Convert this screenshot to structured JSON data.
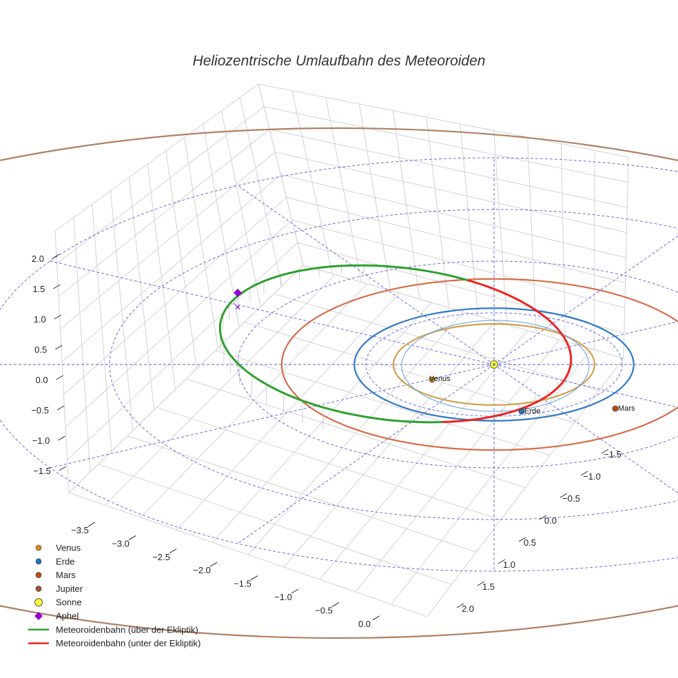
{
  "chart_data": {
    "type": "line",
    "title": "Heliozentrische Umlaufbahn des Meteoroiden",
    "projection": "3d",
    "axes": {
      "x": {
        "ticks": [
          "−3.5",
          "−3.0",
          "−2.5",
          "−2.0",
          "−1.5",
          "−1.0",
          "−0.5",
          "0.0"
        ]
      },
      "y": {
        "ticks": [
          "−1.5",
          "−1.0",
          "−0.5",
          "0.0",
          "0.5",
          "1.0",
          "1.5",
          "2.0"
        ]
      },
      "z": {
        "ticks": [
          "2.0",
          "1.5",
          "1.0",
          "0.5",
          "0.0",
          "−0.5",
          "−1.0",
          "−1.5"
        ]
      }
    },
    "grid": true,
    "ecliptic_reference_rings_au": [
      1,
      2,
      3,
      4
    ],
    "planet_orbits": [
      {
        "name": "Venus",
        "radius_au": 0.72,
        "color": "#d4a04c"
      },
      {
        "name": "Erde",
        "radius_au": 1.0,
        "color": "#2f78c8"
      },
      {
        "name": "Mars",
        "radius_au": 1.52,
        "color": "#d96a45"
      },
      {
        "name": "Jupiter",
        "radius_au": 5.2,
        "color": "#b08060"
      }
    ],
    "planets": [
      {
        "name": "Venus",
        "label": "Venus",
        "color": "#d98a1f"
      },
      {
        "name": "Erde",
        "label": "Erde",
        "color": "#1f77b4"
      },
      {
        "name": "Mars",
        "label": "Mars",
        "color": "#c24a18"
      },
      {
        "name": "Jupiter",
        "label": "",
        "color": "#a0522d"
      }
    ],
    "sun": {
      "name": "Sonne",
      "color": "#ffff33"
    },
    "aphel": {
      "name": "Aphel",
      "color": "#9400d3",
      "projection_marker": "×"
    },
    "series": [
      {
        "name": "Meteoroidenbahn (über der Ekliptik)",
        "color": "#2ca02c"
      },
      {
        "name": "Meteoroidenbahn (unter der Ekliptik)",
        "color": "#ee2222"
      }
    ],
    "legend": {
      "position": "bottom-left",
      "entries": [
        {
          "label": "Venus",
          "symbol": "dot",
          "color": "#d98a1f"
        },
        {
          "label": "Erde",
          "symbol": "dot",
          "color": "#1f77b4"
        },
        {
          "label": "Mars",
          "symbol": "dot",
          "color": "#c24a18"
        },
        {
          "label": "Jupiter",
          "symbol": "dot",
          "color": "#a0522d"
        },
        {
          "label": "Sonne",
          "symbol": "bigdot",
          "color": "#ffff33"
        },
        {
          "label": "Aphel",
          "symbol": "diamond",
          "color": "#9400d3"
        },
        {
          "label": "Meteoroidenbahn (über der Ekliptik)",
          "symbol": "line",
          "color": "#2ca02c"
        },
        {
          "label": "Meteoroidenbahn (unter der Ekliptik)",
          "symbol": "line",
          "color": "#ee2222"
        }
      ]
    }
  }
}
